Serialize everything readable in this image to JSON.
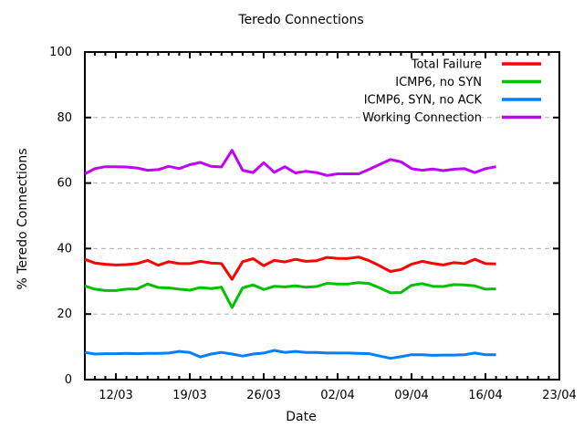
{
  "chart_data": {
    "type": "line",
    "title": "Teredo Connections",
    "xlabel": "Date",
    "ylabel": "% Teredo Connections",
    "ylim": [
      0,
      100
    ],
    "y_ticks": [
      0,
      20,
      40,
      60,
      80,
      100
    ],
    "x_tick_labels": [
      "12/03",
      "19/03",
      "26/03",
      "02/04",
      "09/04",
      "16/04",
      "23/04"
    ],
    "grid": "horizontal-dashed-gray",
    "grid_color": "#b0b0b0",
    "legend_position": "top-right-inside",
    "x": [
      "09/03",
      "10/03",
      "11/03",
      "12/03",
      "13/03",
      "14/03",
      "15/03",
      "16/03",
      "17/03",
      "18/03",
      "19/03",
      "20/03",
      "21/03",
      "22/03",
      "23/03",
      "24/03",
      "25/03",
      "26/03",
      "27/03",
      "28/03",
      "29/03",
      "30/03",
      "31/03",
      "01/04",
      "02/04",
      "03/04",
      "04/04",
      "05/04",
      "06/04",
      "07/04",
      "08/04",
      "09/04",
      "10/04",
      "11/04",
      "12/04",
      "13/04",
      "14/04",
      "15/04",
      "16/04",
      "17/04"
    ],
    "series": [
      {
        "name": "Total Failure",
        "color": "#ff0000",
        "values": [
          36.7,
          35.6,
          35.2,
          35.0,
          35.1,
          35.4,
          36.4,
          34.9,
          36.0,
          35.4,
          35.4,
          36.1,
          35.6,
          35.4,
          30.6,
          36.0,
          36.9,
          34.8,
          36.4,
          35.9,
          36.7,
          36.1,
          36.3,
          37.3,
          37.0,
          37.0,
          37.4,
          36.3,
          34.7,
          33.0,
          33.6,
          35.2,
          36.1,
          35.5,
          35.0,
          35.7,
          35.4,
          36.7,
          35.4,
          35.3
        ]
      },
      {
        "name": "ICMP6, no SYN",
        "color": "#00c000",
        "values": [
          28.6,
          27.6,
          27.2,
          27.2,
          27.6,
          27.7,
          29.2,
          28.1,
          28.0,
          27.6,
          27.3,
          28.1,
          27.8,
          28.2,
          22.0,
          28.0,
          28.9,
          27.5,
          28.5,
          28.3,
          28.6,
          28.2,
          28.4,
          29.4,
          29.2,
          29.2,
          29.6,
          29.3,
          28.0,
          26.5,
          26.6,
          28.8,
          29.3,
          28.5,
          28.4,
          29.0,
          28.9,
          28.6,
          27.6,
          27.7
        ]
      },
      {
        "name": "ICMP6, SYN, no ACK",
        "color": "#0080ff",
        "values": [
          8.3,
          7.8,
          7.9,
          7.9,
          8.0,
          7.9,
          8.0,
          8.0,
          8.1,
          8.6,
          8.3,
          6.9,
          7.8,
          8.3,
          7.8,
          7.2,
          7.8,
          8.1,
          8.9,
          8.3,
          8.6,
          8.3,
          8.3,
          8.1,
          8.1,
          8.1,
          8.0,
          7.9,
          7.2,
          6.5,
          7.0,
          7.6,
          7.6,
          7.4,
          7.5,
          7.5,
          7.6,
          8.1,
          7.6,
          7.6
        ]
      },
      {
        "name": "Working Connection",
        "color": "#c000ff",
        "values": [
          62.8,
          64.4,
          65.0,
          65.0,
          64.9,
          64.6,
          63.9,
          64.1,
          65.1,
          64.4,
          65.6,
          66.3,
          65.1,
          64.9,
          70.0,
          63.9,
          63.2,
          66.2,
          63.3,
          65.0,
          63.1,
          63.6,
          63.2,
          62.3,
          62.8,
          62.8,
          62.8,
          64.2,
          65.7,
          67.2,
          66.5,
          64.4,
          63.9,
          64.3,
          63.8,
          64.2,
          64.4,
          63.2,
          64.4,
          65.0
        ]
      }
    ]
  }
}
